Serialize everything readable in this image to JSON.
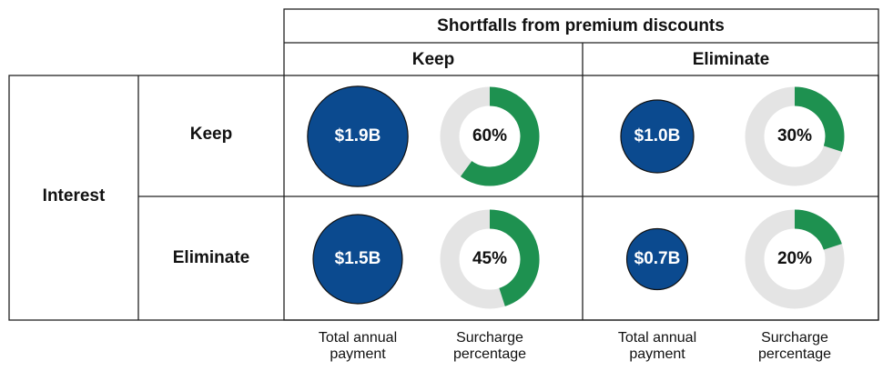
{
  "chart_data": {
    "type": "bubble-donut-matrix",
    "column_header": "Shortfalls from premium discounts",
    "columns": [
      "Keep",
      "Eliminate"
    ],
    "row_header": "Interest",
    "rows": [
      "Keep",
      "Eliminate"
    ],
    "payment_label": "Total annual payment",
    "surcharge_label": "Surcharge percentage",
    "payments": [
      [
        1.9,
        1.0
      ],
      [
        1.5,
        0.7
      ]
    ],
    "payment_labels": [
      [
        "$1.9B",
        "$1.0B"
      ],
      [
        "$1.5B",
        "$0.7B"
      ]
    ],
    "surcharges": [
      [
        60,
        30
      ],
      [
        45,
        20
      ]
    ],
    "surcharge_labels": [
      [
        "60%",
        "30%"
      ],
      [
        "45%",
        "20%"
      ]
    ],
    "bubble_color": "#0b4a8f",
    "donut_color": "#1e9150",
    "track_color": "#e4e4e4"
  }
}
